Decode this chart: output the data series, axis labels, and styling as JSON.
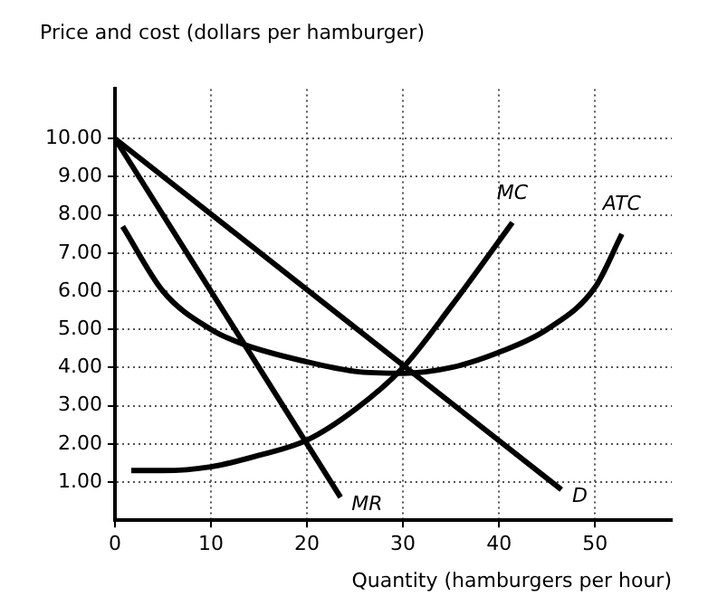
{
  "chart_data": {
    "type": "line",
    "ylabel": "Price and cost (dollars per hamburger)",
    "xlabel": "Quantity (hamburgers per hour)",
    "xlim": [
      0,
      58
    ],
    "ylim": [
      0,
      11.3
    ],
    "xticks": [
      0,
      10,
      20,
      30,
      40,
      50
    ],
    "yticks": [
      {
        "value": 1,
        "label": "1.00"
      },
      {
        "value": 2,
        "label": "2.00"
      },
      {
        "value": 3,
        "label": "3.00"
      },
      {
        "value": 4,
        "label": "4.00"
      },
      {
        "value": 5,
        "label": "5.00"
      },
      {
        "value": 6,
        "label": "6.00"
      },
      {
        "value": 7,
        "label": "7.00"
      },
      {
        "value": 8,
        "label": "8.00"
      },
      {
        "value": 9,
        "label": "9.00"
      },
      {
        "value": 10,
        "label": "10.00"
      }
    ],
    "grid": true,
    "legend": false,
    "marker": "none",
    "line_style": "solid",
    "series": [
      {
        "name": "D",
        "color": "#000000",
        "x": [
          0,
          46.5
        ],
        "values": [
          10,
          0.8
        ]
      },
      {
        "name": "MR",
        "color": "#000000",
        "x": [
          0,
          23.5
        ],
        "values": [
          10,
          0.6
        ]
      },
      {
        "name": "MC",
        "color": "#000000",
        "x": [
          1.7,
          5,
          10,
          15,
          20,
          25,
          30,
          35,
          41.4
        ],
        "values": [
          1.3,
          1.3,
          1.4,
          1.7,
          2.1,
          2.9,
          4.0,
          5.6,
          7.8
        ]
      },
      {
        "name": "ATC",
        "color": "#000000",
        "x": [
          0.8,
          5,
          10,
          13.5,
          20,
          25,
          30,
          35,
          40,
          45,
          50,
          52.8
        ],
        "values": [
          7.7,
          6.0,
          5.0,
          4.6,
          4.15,
          3.9,
          3.85,
          4.0,
          4.4,
          5.0,
          6.1,
          7.5
        ]
      }
    ]
  }
}
